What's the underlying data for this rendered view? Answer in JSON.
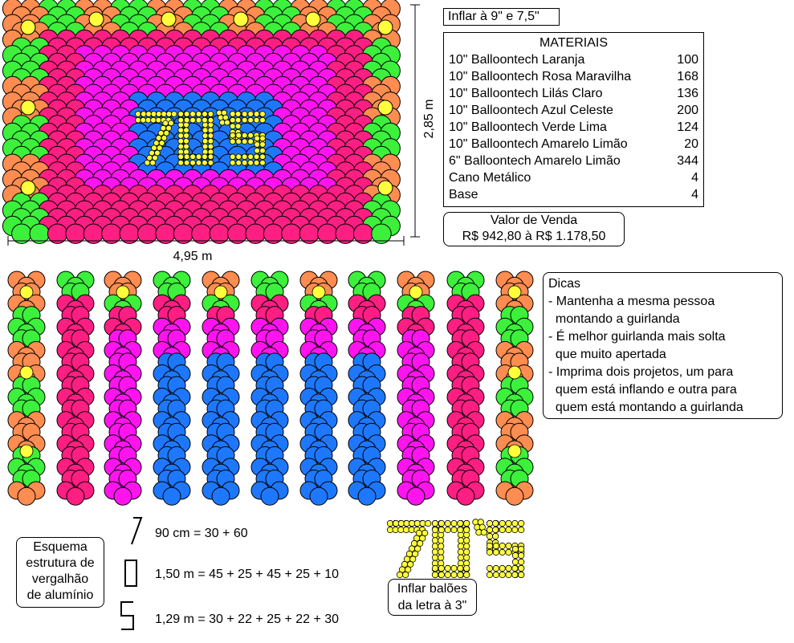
{
  "inflate_note": "Inflar à 9\" e 7,5\"",
  "materials": {
    "title": "MATERIAIS",
    "items": [
      {
        "name": "10\" Balloontech Laranja",
        "qty": "100"
      },
      {
        "name": "10\" Balloontech Rosa Maravilha",
        "qty": "168"
      },
      {
        "name": "10\" Balloontech Lilás Claro",
        "qty": "136"
      },
      {
        "name": "10\" Balloontech Azul Celeste",
        "qty": "200"
      },
      {
        "name": "10\" Balloontech Verde Lima",
        "qty": "124"
      },
      {
        "name": "10\" Balloontech Amarelo Limão",
        "qty": "20"
      },
      {
        "name": "6\" Balloontech Amarelo Limão",
        "qty": "344"
      },
      {
        "name": "Cano Metálico",
        "qty": "4"
      },
      {
        "name": "Base",
        "qty": "4"
      }
    ]
  },
  "sale": {
    "title": "Valor de Venda",
    "value": "R$ 942,80 à R$ 1.178,50"
  },
  "dimensions": {
    "width": "4,95 m",
    "height": "2,85 m"
  },
  "tips": {
    "title": "Dicas",
    "lines": [
      "- Mantenha a mesma pessoa",
      "  montando a guirlanda",
      "- É melhor guirlanda mais solta",
      "  que muito apertada",
      "- Imprima dois projetos, um para",
      "  quem está inflando e outra para",
      "  quem está montando a guirlanda"
    ]
  },
  "scheme": {
    "title_lines": [
      "Esquema",
      "estrutura de",
      "vergalhão",
      "de alumínio"
    ],
    "items": [
      {
        "icon": "seven-shape-icon",
        "text": "90 cm = 30 + 60"
      },
      {
        "icon": "rectangle-shape-icon",
        "text": "1,50 m = 45 + 25 + 45 + 25 + 10"
      },
      {
        "icon": "s-shape-icon",
        "text": "1,29 m = 30 + 22 + 25 + 22 + 30"
      }
    ]
  },
  "letters": {
    "text": "70'S",
    "note_lines": [
      "Inflar balões",
      "da letra à 3\""
    ]
  },
  "colors": {
    "orange": "#ff8c50",
    "pink": "#ff1e82",
    "magenta": "#ff14f0",
    "blue": "#1e78ff",
    "green": "#3cf03c",
    "yellow": "#ffff3c",
    "outline": "#000000"
  }
}
